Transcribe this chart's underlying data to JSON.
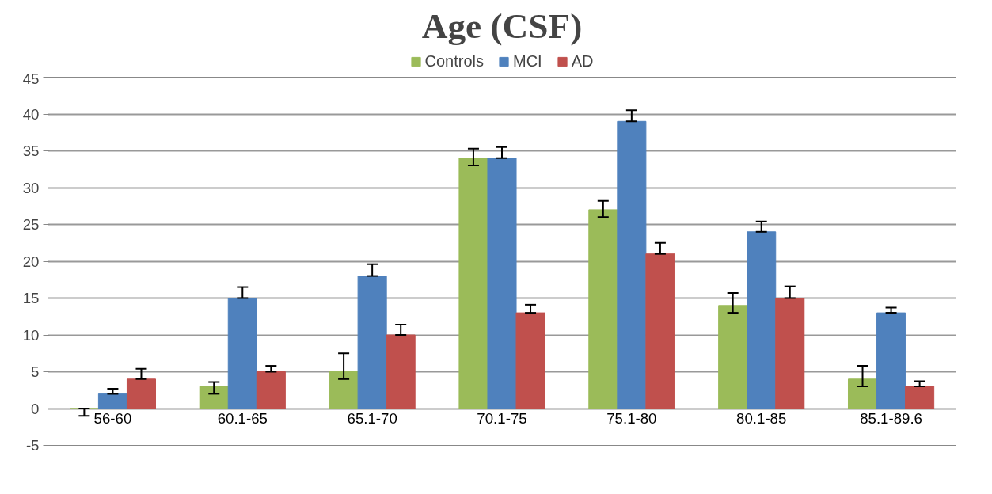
{
  "chart_data": {
    "type": "bar",
    "title": "Age (CSF)",
    "categories": [
      "56-60",
      "60.1-65",
      "65.1-70",
      "70.1-75",
      "75.1-80",
      "80.1-85",
      "85.1-89.6"
    ],
    "series": [
      {
        "name": "Controls",
        "color": "#9bbb59",
        "values": [
          0,
          3,
          5,
          34,
          27,
          14,
          4
        ],
        "errors": [
          [
            -1,
            0
          ],
          [
            2,
            3.6
          ],
          [
            4,
            7.5
          ],
          [
            33,
            35.3
          ],
          [
            26,
            28.2
          ],
          [
            13,
            15.7
          ],
          [
            3,
            5.8
          ]
        ]
      },
      {
        "name": "MCI",
        "color": "#4f81bd",
        "values": [
          2,
          15,
          18,
          34,
          39,
          24,
          13
        ],
        "errors": [
          [
            2,
            2.7
          ],
          [
            15,
            16.5
          ],
          [
            18,
            19.6
          ],
          [
            34,
            35.5
          ],
          [
            39,
            40.5
          ],
          [
            24,
            25.4
          ],
          [
            13,
            13.7
          ]
        ]
      },
      {
        "name": "AD",
        "color": "#c0504d",
        "values": [
          4,
          5,
          10,
          13,
          21,
          15,
          3
        ],
        "errors": [
          [
            4,
            5.4
          ],
          [
            5,
            5.8
          ],
          [
            10,
            11.4
          ],
          [
            13,
            14.1
          ],
          [
            21,
            22.5
          ],
          [
            15,
            16.6
          ],
          [
            3,
            3.7
          ]
        ]
      }
    ],
    "ylim": [
      -5,
      45
    ],
    "yticks": [
      -5,
      0,
      5,
      10,
      15,
      20,
      25,
      30,
      35,
      40,
      45
    ],
    "grid": "y",
    "legend": "top"
  }
}
